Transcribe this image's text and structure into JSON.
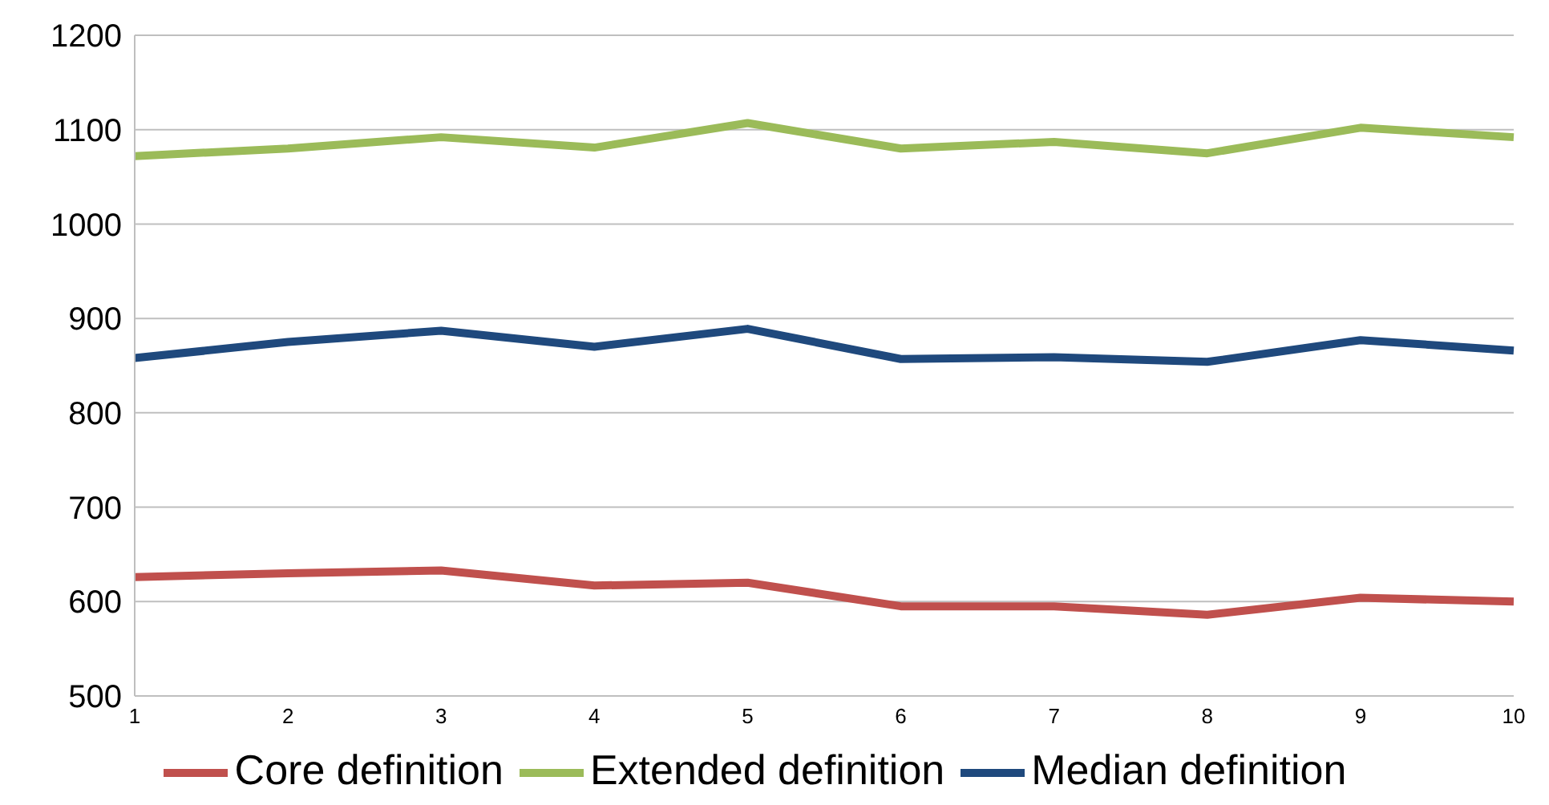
{
  "chart_data": {
    "type": "line",
    "categories": [
      "1",
      "2",
      "3",
      "4",
      "5",
      "6",
      "7",
      "8",
      "9",
      "10"
    ],
    "series": [
      {
        "name": "Core definition",
        "color": "#c0504d",
        "values": [
          626,
          630,
          633,
          617,
          620,
          595,
          595,
          586,
          604,
          600
        ]
      },
      {
        "name": "Median definition",
        "color": "#1f497d",
        "values": [
          858,
          875,
          887,
          870,
          889,
          857,
          859,
          854,
          877,
          866
        ]
      },
      {
        "name": "Extended definition",
        "color": "#9bbb59",
        "values": [
          1072,
          1080,
          1092,
          1081,
          1107,
          1080,
          1087,
          1075,
          1102,
          1092
        ]
      }
    ],
    "ylim": [
      500,
      1200
    ],
    "yticks": [
      500,
      600,
      700,
      800,
      900,
      1000,
      1100,
      1200
    ],
    "grid": "y",
    "legend": "bottom",
    "marker": "none",
    "line_style": "solid"
  }
}
